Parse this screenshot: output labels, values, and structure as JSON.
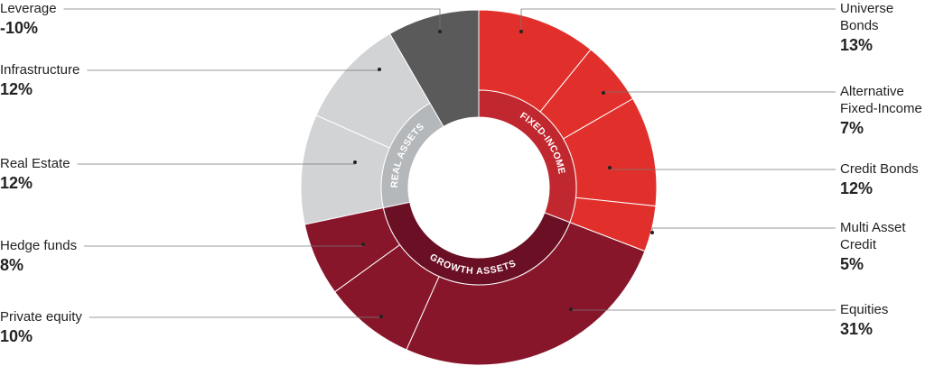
{
  "chart_data": {
    "type": "sunburst",
    "groups": [
      {
        "name": "FIXED-INCOME",
        "color": "#c1272f",
        "segment_color": "#e1302b",
        "categories": [
          "Universe Bonds",
          "Alternative Fixed-Income",
          "Credit Bonds",
          "Multi Asset Credit"
        ],
        "values": [
          13,
          7,
          12,
          5
        ],
        "value_labels": [
          "13%",
          "7%",
          "12%",
          "5%"
        ]
      },
      {
        "name": "GROWTH ASSETS",
        "color": "#6b1024",
        "segment_color": "#88162b",
        "categories": [
          "Equities",
          "Private equity",
          "Hedge funds"
        ],
        "values": [
          31,
          10,
          8
        ],
        "value_labels": [
          "31%",
          "10%",
          "8%"
        ]
      },
      {
        "name": "REAL ASSETS",
        "color": "#b5b8bb",
        "segment_color": "#d1d3d5",
        "categories": [
          "Real Estate",
          "Infrastructure"
        ],
        "values": [
          12,
          12
        ],
        "value_labels": [
          "12%",
          "12%"
        ]
      },
      {
        "name": null,
        "color": "#5a5a5a",
        "segment_color": "#5a5a5a",
        "categories": [
          "Leverage"
        ],
        "values": [
          -10
        ],
        "value_labels": [
          "-10%"
        ]
      }
    ]
  }
}
